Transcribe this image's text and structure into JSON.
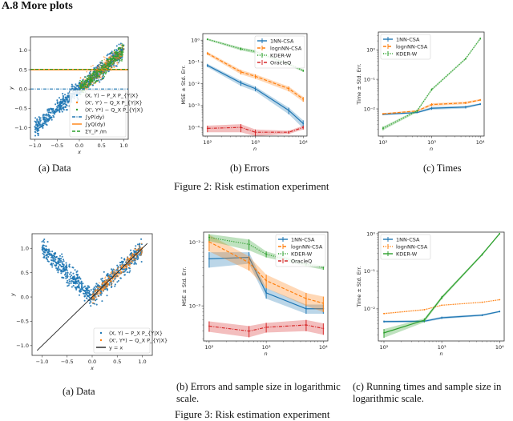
{
  "section": {
    "number": "A.8",
    "title": "A.8 More plots"
  },
  "figure2": {
    "caption": "Figure 2: Risk estimation experiment",
    "subcaptions": {
      "a": "(a) Data",
      "b": "(b) Errors",
      "c": "(c) Times"
    }
  },
  "figure3": {
    "caption": "Figure 3: Risk estimation experiment",
    "subcaptions": {
      "a": "(a) Data",
      "b": "(b) Errors and sample size in logarithmic scale.",
      "c": "(c) Running times and sample size in logarithmic scale."
    }
  },
  "colors": {
    "blue": "#1f77b4",
    "orange": "#ff7f0e",
    "green": "#2ca02c",
    "red": "#d62728",
    "black": "#222222"
  },
  "chart_data": [
    {
      "id": "fig2a",
      "type": "scatter",
      "title": "",
      "xlabel": "x",
      "ylabel": "y",
      "xlim": [
        -1.1,
        1.1
      ],
      "ylim": [
        -1.3,
        1.35
      ],
      "xticks": [
        -1.0,
        -0.5,
        0.0,
        0.5,
        1.0
      ],
      "xtick_labels": [
        "−1.0",
        "−0.5",
        "0.0",
        "0.5",
        "1.0"
      ],
      "yticks": [
        -1.0,
        -0.5,
        0.0,
        0.5,
        1.0
      ],
      "ytick_labels": [
        "−1.0",
        "−0.5",
        "0.0",
        "0.5",
        "1.0"
      ],
      "legend_position": "lower-right",
      "series": [
        {
          "name": "(X, Y) ~ P_X P_{Y|X}",
          "kind": "points",
          "color": "blue",
          "relation": "y ≈ x",
          "x_range": [
            -1.0,
            1.0
          ],
          "noise": 0.1
        },
        {
          "name": "(X', Y') ~ Q_X P_{Y|X}",
          "kind": "points",
          "color": "orange",
          "relation": "y ≈ x",
          "x_range": [
            0.0,
            1.0
          ],
          "noise": 0.1
        },
        {
          "name": "(X', Y*) ~ Q_X P̂_{Y|X}",
          "kind": "points",
          "color": "green",
          "relation": "y ≈ x",
          "x_range": [
            0.0,
            1.0
          ],
          "noise": 0.1
        },
        {
          "name": "∫yP(dy)",
          "kind": "hline",
          "color": "blue",
          "style": "dashdot",
          "y": 0.0
        },
        {
          "name": "∫yQ(dy)",
          "kind": "hline",
          "color": "orange",
          "style": "solid",
          "y": 0.5
        },
        {
          "name": "ΣY_i* /m",
          "kind": "hline",
          "color": "green",
          "style": "dashed",
          "y": 0.51
        }
      ]
    },
    {
      "id": "fig2b",
      "type": "line",
      "title": "",
      "xlabel": "n",
      "ylabel": "MSE ± Std. Err.",
      "xscale": "log",
      "yscale": "log",
      "xlim": [
        80,
        12000
      ],
      "ylim": [
        4e-05,
        2
      ],
      "xticks": [
        100,
        1000,
        10000
      ],
      "xtick_labels": [
        "10²",
        "10³",
        "10⁴"
      ],
      "yticks": [
        0.0001,
        0.001,
        0.01,
        0.1,
        1
      ],
      "ytick_labels": [
        "10⁻⁴",
        "10⁻³",
        "10⁻²",
        "10⁻¹",
        "10⁰"
      ],
      "legend_position": "upper-right",
      "x": [
        100,
        500,
        1000,
        5000,
        10000
      ],
      "series": [
        {
          "name": "1NN-CSA",
          "color": "blue",
          "style": "solid",
          "values": [
            0.07,
            0.011,
            0.006,
            0.0006,
            0.00015
          ],
          "err": [
            0.012,
            0.003,
            0.0015,
            0.0002,
            6e-05
          ]
        },
        {
          "name": "lognNN-CSA",
          "color": "orange",
          "style": "dashed",
          "values": [
            0.25,
            0.035,
            0.022,
            0.006,
            0.002
          ],
          "err": [
            0.04,
            0.008,
            0.005,
            0.0015,
            0.0005
          ]
        },
        {
          "name": "KDER-W",
          "color": "green",
          "style": "dotted",
          "values": [
            1.1,
            0.4,
            0.3,
            0.08,
            0.04
          ],
          "err": [
            0.1,
            0.06,
            0.05,
            0.01,
            0.005
          ]
        },
        {
          "name": "OracleQ",
          "color": "red",
          "style": "dashdot",
          "values": [
            9e-05,
            0.0001,
            6e-05,
            6e-05,
            0.0001
          ],
          "err": [
            3e-05,
            4e-05,
            2e-05,
            1e-05,
            2e-05
          ]
        }
      ]
    },
    {
      "id": "fig2c",
      "type": "line",
      "title": "",
      "xlabel": "n",
      "ylabel": "Time ± Std. Err.",
      "xscale": "log",
      "yscale": "log",
      "xlim": [
        80,
        12000
      ],
      "ylim": [
        0.0012,
        4
      ],
      "xticks": [
        100,
        1000,
        10000
      ],
      "xtick_labels": [
        "10²",
        "10³",
        "10⁴"
      ],
      "yticks": [
        0.01,
        0.1,
        1
      ],
      "ytick_labels": [
        "10⁻²",
        "10⁻¹",
        "10⁰"
      ],
      "legend_position": "upper-left",
      "x": [
        100,
        500,
        1000,
        5000,
        10000
      ],
      "series": [
        {
          "name": "1NN-CSA",
          "color": "blue",
          "style": "solid",
          "values": [
            0.0065,
            0.0075,
            0.0105,
            0.0115,
            0.0145
          ],
          "err": [
            0.0004,
            0.0004,
            0.0012,
            0.0012,
            0.001
          ]
        },
        {
          "name": "lognNN-CSA",
          "color": "orange",
          "style": "dashed",
          "values": [
            0.0068,
            0.0085,
            0.014,
            0.016,
            0.02
          ],
          "err": [
            0.0004,
            0.0005,
            0.0015,
            0.0015,
            0.0015
          ]
        },
        {
          "name": "KDER-W",
          "color": "green",
          "style": "dotted",
          "values": [
            0.0022,
            0.0085,
            0.045,
            0.5,
            2.4
          ],
          "err": [
            0.0003,
            0.0008,
            0.004,
            0.04,
            0.2
          ]
        }
      ]
    },
    {
      "id": "fig3a",
      "type": "scatter",
      "title": "",
      "xlabel": "x",
      "ylabel": "y",
      "xlim": [
        -1.2,
        1.2
      ],
      "ylim": [
        -1.2,
        1.3
      ],
      "xticks": [
        -1.0,
        -0.5,
        0.0,
        0.5,
        1.0
      ],
      "xtick_labels": [
        "−1.0",
        "−0.5",
        "0.0",
        "0.5",
        "1.0"
      ],
      "yticks": [
        -1.0,
        -0.5,
        0.0,
        0.5,
        1.0
      ],
      "ytick_labels": [
        "−1.0",
        "−0.5",
        "0.0",
        "0.5",
        "1.0"
      ],
      "legend_position": "lower-right",
      "series": [
        {
          "name": "(X, Y) ~ P_X P_{Y|X}",
          "kind": "points",
          "color": "blue",
          "relation": "y ≈ |x|",
          "x_range": [
            -1.0,
            1.0
          ],
          "noise": 0.1
        },
        {
          "name": "(X', Y*) ~ Q_X P_{Y|X}",
          "kind": "points",
          "color": "orange",
          "relation": "y ≈ x",
          "x_range": [
            0.0,
            1.0
          ],
          "noise": 0.06
        },
        {
          "name": "y = x",
          "kind": "line",
          "color": "black",
          "style": "solid",
          "from": [
            -1.1,
            -1.1
          ],
          "to": [
            1.1,
            1.1
          ]
        }
      ]
    },
    {
      "id": "fig3b",
      "type": "line",
      "title": "",
      "xlabel": "n",
      "ylabel": "MSE ± Std. Err.",
      "xscale": "log",
      "yscale": "log",
      "xlim": [
        80,
        12000
      ],
      "ylim": [
        0.00028,
        0.0145
      ],
      "xticks": [
        100,
        1000,
        10000
      ],
      "xtick_labels": [
        "10²",
        "10³",
        "10⁴"
      ],
      "yticks": [
        0.001,
        0.01
      ],
      "ytick_labels": [
        "10⁻³",
        "10⁻²"
      ],
      "legend_position": "upper-right",
      "x": [
        100,
        500,
        1000,
        5000,
        10000
      ],
      "series": [
        {
          "name": "1NN-CSA",
          "color": "blue",
          "style": "solid",
          "values": [
            0.0055,
            0.0058,
            0.0016,
            0.0009,
            0.0009
          ],
          "err": [
            0.0015,
            0.0012,
            0.0003,
            0.00015,
            0.00015
          ]
        },
        {
          "name": "lognNN-CSA",
          "color": "orange",
          "style": "dashed",
          "values": [
            0.0102,
            0.0048,
            0.0025,
            0.0013,
            0.0011
          ],
          "err": [
            0.003,
            0.0012,
            0.0006,
            0.0003,
            0.0003
          ]
        },
        {
          "name": "KDER-W",
          "color": "green",
          "style": "dotted",
          "values": [
            0.012,
            0.0093,
            0.0065,
            0.0045,
            0.004
          ],
          "err": [
            0.0015,
            0.0018,
            0.0007,
            0.0003,
            0.0003
          ]
        },
        {
          "name": "OracleQ",
          "color": "red",
          "style": "dashdot",
          "values": [
            0.00048,
            0.0004,
            0.00046,
            0.0005,
            0.00044
          ],
          "err": [
            9e-05,
            8e-05,
            8e-05,
            0.0001,
            9e-05
          ]
        }
      ]
    },
    {
      "id": "fig3c",
      "type": "line",
      "title": "",
      "xlabel": "n",
      "ylabel": "Time ± Std. Err.",
      "xscale": "log",
      "yscale": "log",
      "xlim": [
        80,
        12000
      ],
      "ylim": [
        0.0014,
        1.1
      ],
      "xticks": [
        100,
        1000,
        10000
      ],
      "xtick_labels": [
        "10²",
        "10³",
        "10⁴"
      ],
      "yticks": [
        0.01,
        0.1,
        1
      ],
      "ytick_labels": [
        "10⁻²",
        "10⁻¹",
        "10⁰"
      ],
      "legend_position": "upper-left",
      "x": [
        100,
        500,
        1000,
        5000,
        10000
      ],
      "series": [
        {
          "name": "1NN-CSA",
          "color": "blue",
          "style": "solid",
          "values": [
            0.0046,
            0.0047,
            0.0058,
            0.0068,
            0.0085
          ],
          "err": [
            0.0003,
            0.0003,
            0.0004,
            0.0004,
            0.0004
          ]
        },
        {
          "name": "lognNN-CSA",
          "color": "orange",
          "style": "dotted",
          "values": [
            0.0075,
            0.0095,
            0.0125,
            0.015,
            0.0175
          ],
          "err": [
            0.0003,
            0.0003,
            0.0004,
            0.0004,
            0.0004
          ]
        },
        {
          "name": "KDER-W",
          "color": "green",
          "style": "solid",
          "values": [
            0.0023,
            0.005,
            0.02,
            0.28,
            1.0
          ],
          "err": [
            0.0006,
            0.0006,
            0.002,
            0.02,
            0.05
          ]
        }
      ]
    }
  ]
}
